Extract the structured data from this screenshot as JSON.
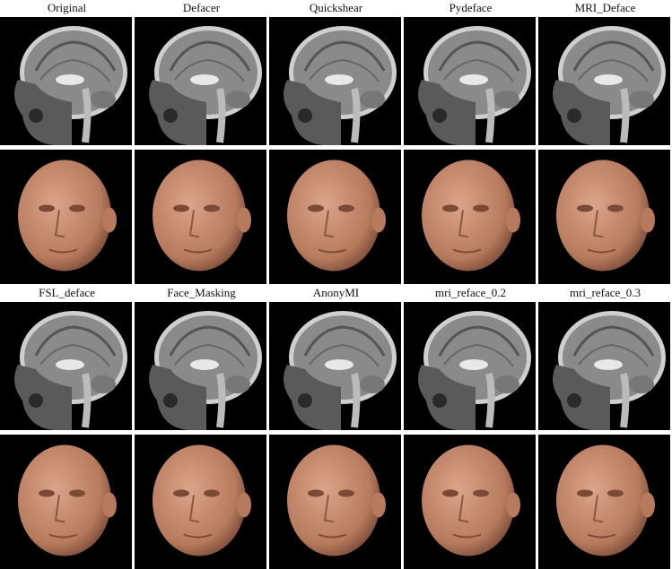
{
  "figure": {
    "rows": [
      {
        "methods": [
          "Original",
          "Defacer",
          "Quickshear",
          "Pydeface",
          "MRI_Deface"
        ]
      },
      {
        "methods": [
          "FSL_deface",
          "Face_Masking",
          "AnonyMI",
          "mri_reface_0.2",
          "mri_reface_0.3"
        ]
      }
    ]
  },
  "colors": {
    "background": "#000000",
    "skin": "#b77a5c",
    "brain": "#8a8a8a"
  }
}
